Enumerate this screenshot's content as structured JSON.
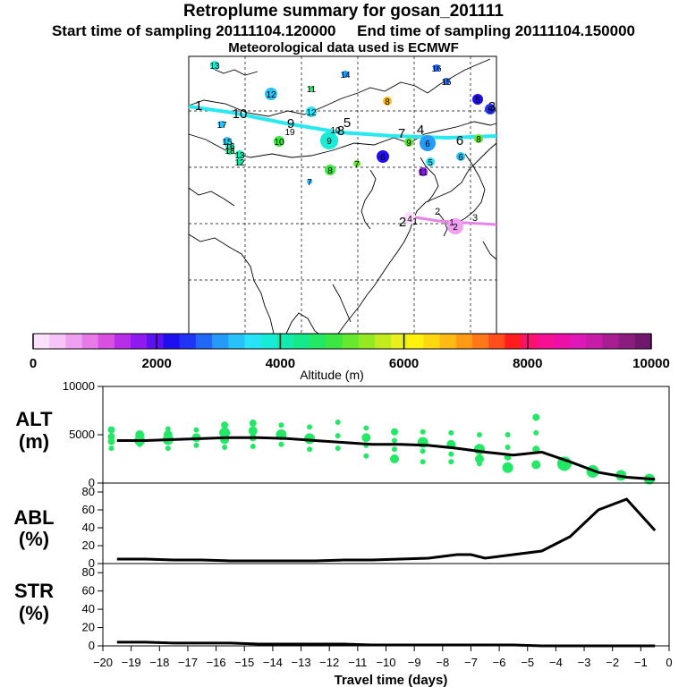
{
  "header": {
    "title": "Retroplume summary for gosan_201111",
    "line2": "Start time of sampling 20111104.120000     End time of sampling 20111104.150000",
    "line3": "Meteorological data used is ECMWF"
  },
  "colorbar": {
    "ticks": [
      "0",
      "2000",
      "4000",
      "6000",
      "8000",
      "10000"
    ],
    "label": "Altitude  (m)",
    "colors": [
      "#fbe0fb",
      "#f6c4f6",
      "#f0a0f0",
      "#e77ae7",
      "#d94fe0",
      "#b82ee8",
      "#8f1aee",
      "#5f10f0",
      "#1d0ff0",
      "#1f34f5",
      "#2168f8",
      "#249af9",
      "#27c2f9",
      "#28e2f7",
      "#19ecd4",
      "#12eaae",
      "#16e98a",
      "#22e866",
      "#3ce742",
      "#65e82e",
      "#93ea24",
      "#c2ec1f",
      "#e8ef1a",
      "#fff10e",
      "#ffd710",
      "#ffba14",
      "#ff9a16",
      "#ff7818",
      "#ff4d1c",
      "#ff1c1c",
      "#ff1070",
      "#f81094",
      "#ec10a8",
      "#de18b8",
      "#c61ca8",
      "#a81e92",
      "#8c1c80",
      "#6e186e"
    ]
  },
  "map": {
    "trajectory_labels": [
      "1",
      "10",
      "9",
      "8",
      "7",
      "6",
      "5",
      "4",
      "3",
      "2"
    ],
    "south_labels": [
      "1",
      "2",
      "3"
    ],
    "cluster_labels": [
      "13",
      "14",
      "16",
      "15",
      "11",
      "12",
      "8",
      "5",
      "12",
      "17",
      "10",
      "9",
      "15",
      "16",
      "18",
      "13",
      "19",
      "10",
      "9",
      "6",
      "8",
      "6",
      "5",
      "7",
      "6",
      "12",
      "8",
      "7",
      "11",
      "9",
      "4",
      "2",
      "1"
    ]
  },
  "panels": {
    "alt": {
      "label_line1": "ALT",
      "label_line2": "(m)",
      "ticks": [
        "10000",
        "5000",
        "0"
      ]
    },
    "abl": {
      "label_line1": "ABL",
      "label_line2": "(%)",
      "ticks": [
        "80",
        "60",
        "40",
        "20",
        "0"
      ]
    },
    "str": {
      "label_line1": "STR",
      "label_line2": "(%)",
      "ticks": [
        "80",
        "60",
        "40",
        "20",
        "0"
      ]
    },
    "x_ticks": [
      "−20",
      "−19",
      "−18",
      "−17",
      "−16",
      "−15",
      "−14",
      "−13",
      "−12",
      "−11",
      "−10",
      "−9",
      "−8",
      "−7",
      "−6",
      "−5",
      "−4",
      "−3",
      "−2",
      "−1",
      "0"
    ],
    "xlabel": "Travel time (days)"
  },
  "chart_data": [
    {
      "type": "line",
      "title": "ALT (m)",
      "xlabel": "Travel time (days)",
      "ylabel": "ALT (m)",
      "xlim": [
        -20,
        0
      ],
      "ylim": [
        0,
        10000
      ],
      "x": [
        -19.5,
        -18.5,
        -17.5,
        -16.5,
        -15.5,
        -14.5,
        -13.5,
        -12.5,
        -11.5,
        -10.5,
        -9.5,
        -8.5,
        -7.5,
        -6.5,
        -5.5,
        -4.5,
        -3.5,
        -2.5,
        -1.5,
        -0.5
      ],
      "y": [
        4400,
        4400,
        4500,
        4600,
        4700,
        4700,
        4600,
        4400,
        4200,
        4000,
        4000,
        3900,
        3600,
        3200,
        2900,
        3200,
        2200,
        1100,
        600,
        400
      ],
      "scatter": {
        "x": [
          -19.7,
          -19.7,
          -19.7,
          -19.7,
          -18.7,
          -18.7,
          -18.7,
          -17.7,
          -17.7,
          -17.7,
          -17.7,
          -16.7,
          -16.7,
          -16.7,
          -15.7,
          -15.7,
          -15.7,
          -15.7,
          -14.7,
          -14.7,
          -14.7,
          -14.7,
          -13.7,
          -13.7,
          -13.7,
          -12.7,
          -12.7,
          -12.7,
          -11.7,
          -11.7,
          -11.7,
          -10.7,
          -10.7,
          -10.7,
          -10.7,
          -9.7,
          -9.7,
          -9.7,
          -9.7,
          -8.7,
          -8.7,
          -8.7,
          -8.7,
          -7.7,
          -7.7,
          -7.7,
          -7.7,
          -6.7,
          -6.7,
          -6.7,
          -6.7,
          -5.7,
          -5.7,
          -5.7,
          -5.7,
          -4.7,
          -4.7,
          -4.7,
          -4.7,
          -3.7,
          -2.7,
          -1.7,
          -0.7
        ],
        "y": [
          5500,
          4800,
          4300,
          3600,
          5000,
          4400,
          4000,
          5600,
          5000,
          4500,
          3600,
          5500,
          4700,
          3900,
          6000,
          5200,
          4500,
          3700,
          6200,
          5400,
          4700,
          3800,
          6000,
          5000,
          4000,
          5800,
          4600,
          3500,
          6300,
          4900,
          3600,
          5700,
          4700,
          3900,
          2800,
          5300,
          4400,
          3500,
          2500,
          5300,
          4200,
          3300,
          2200,
          5200,
          4000,
          3000,
          2200,
          5000,
          3500,
          2500,
          2000,
          5000,
          3700,
          2700,
          1600,
          6800,
          5200,
          3500,
          1900,
          2000,
          1200,
          800,
          400
        ],
        "r": [
          4,
          4,
          4,
          3,
          5,
          6,
          3,
          3,
          5,
          6,
          3,
          3,
          5,
          3,
          4,
          6,
          5,
          3,
          4,
          5,
          4,
          3,
          3,
          6,
          3,
          3,
          6,
          3,
          3,
          3,
          3,
          3,
          5,
          3,
          3,
          4,
          3,
          3,
          5,
          3,
          6,
          3,
          3,
          3,
          5,
          3,
          3,
          3,
          6,
          5,
          3,
          3,
          3,
          4,
          6,
          4,
          3,
          4,
          5,
          8,
          7,
          6,
          6
        ]
      }
    },
    {
      "type": "line",
      "title": "ABL (%)",
      "xlabel": "Travel time (days)",
      "ylabel": "ABL (%)",
      "xlim": [
        -20,
        0
      ],
      "ylim": [
        0,
        90
      ],
      "x": [
        -19.5,
        -18.5,
        -17.5,
        -16.5,
        -15.5,
        -14.5,
        -13.5,
        -12.5,
        -11.5,
        -10.5,
        -9.5,
        -8.5,
        -8,
        -7.5,
        -7,
        -6.5,
        -5.5,
        -4.5,
        -3.5,
        -2.5,
        -1.5,
        -0.5
      ],
      "y": [
        5,
        5,
        4,
        4,
        3,
        3,
        3,
        3,
        4,
        4,
        5,
        6,
        8,
        10,
        10,
        6,
        10,
        14,
        30,
        60,
        72,
        37
      ]
    },
    {
      "type": "line",
      "title": "STR (%)",
      "xlabel": "Travel time (days)",
      "ylabel": "STR (%)",
      "xlim": [
        -20,
        0
      ],
      "ylim": [
        0,
        90
      ],
      "x": [
        -19.5,
        -18.5,
        -17.5,
        -16.5,
        -15.5,
        -14.5,
        -13.5,
        -12.5,
        -11.5,
        -10.5,
        -9.5,
        -8.5,
        -7.5,
        -6.5,
        -5.5,
        -4.5,
        -3.5,
        -2.5,
        -1.5,
        -0.5
      ],
      "y": [
        4,
        4,
        3,
        3,
        3,
        2,
        2,
        2,
        2,
        1,
        1,
        1,
        1,
        1,
        1,
        0,
        0,
        0,
        0,
        0
      ]
    }
  ]
}
